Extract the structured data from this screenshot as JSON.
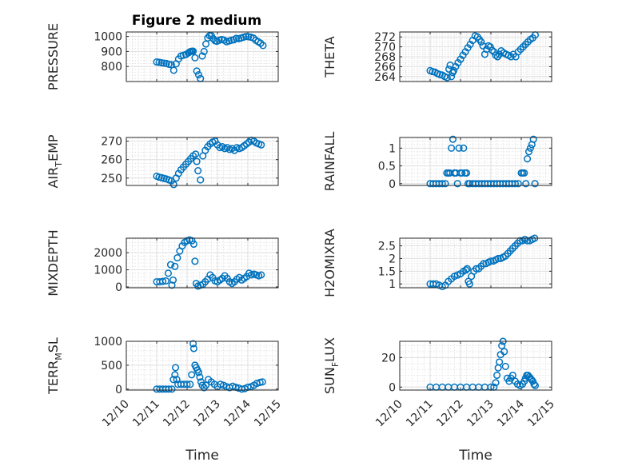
{
  "figure": {
    "title": "Figure 2 medium"
  },
  "chart_data": [
    {
      "type": "scatter",
      "title": "Figure 2 medium",
      "ylabel": "PRESSURE",
      "xlabel": "",
      "ylim": [
        700,
        1030
      ],
      "yticks": [
        800,
        900,
        1000
      ],
      "xlim": [
        10.0,
        15.0
      ],
      "grid": true,
      "x": [
        11.0,
        11.08,
        11.16,
        11.24,
        11.32,
        11.4,
        11.48,
        11.56,
        11.64,
        11.72,
        11.8,
        11.88,
        11.96,
        12.04,
        12.08,
        12.12,
        12.16,
        12.2,
        12.26,
        12.32,
        12.38,
        12.44,
        12.5,
        12.56,
        12.62,
        12.68,
        12.74,
        12.8,
        12.86,
        12.92,
        12.98,
        13.06,
        13.14,
        13.22,
        13.3,
        13.38,
        13.46,
        13.54,
        13.62,
        13.7,
        13.78,
        13.86,
        13.94,
        14.02,
        14.1,
        14.18,
        14.26,
        14.34,
        14.42,
        14.5
      ],
      "y": [
        830,
        828,
        825,
        822,
        820,
        815,
        812,
        775,
        818,
        850,
        870,
        875,
        880,
        890,
        896,
        900,
        902,
        902,
        858,
        770,
        745,
        720,
        870,
        900,
        950,
        990,
        1005,
        1005,
        985,
        972,
        968,
        975,
        980,
        975,
        965,
        970,
        975,
        978,
        988,
        985,
        990,
        995,
        1000,
        998,
        995,
        990,
        975,
        965,
        955,
        940
      ]
    },
    {
      "type": "scatter",
      "ylabel": "THETA",
      "xlabel": "",
      "ylim": [
        263,
        273
      ],
      "yticks": [
        264,
        266,
        268,
        270,
        272
      ],
      "xlim": [
        10.0,
        15.0
      ],
      "grid": true,
      "x": [
        11.0,
        11.08,
        11.16,
        11.24,
        11.32,
        11.4,
        11.48,
        11.56,
        11.62,
        11.66,
        11.7,
        11.74,
        11.78,
        11.84,
        11.92,
        12.0,
        12.08,
        12.16,
        12.24,
        12.32,
        12.4,
        12.48,
        12.56,
        12.62,
        12.68,
        12.74,
        12.8,
        12.86,
        12.92,
        12.98,
        13.04,
        13.1,
        13.16,
        13.22,
        13.28,
        13.34,
        13.42,
        13.5,
        13.58,
        13.66,
        13.74,
        13.82,
        13.9,
        13.98,
        14.06,
        14.14,
        14.22,
        14.3,
        14.38,
        14.46
      ],
      "y": [
        265.2,
        265.0,
        264.9,
        264.6,
        264.4,
        264.3,
        264.0,
        263.8,
        265.5,
        266.3,
        264.0,
        264.8,
        265.2,
        266.0,
        266.8,
        267.5,
        268.3,
        269.0,
        269.8,
        270.5,
        271.3,
        272.2,
        272.0,
        271.5,
        271.0,
        270.2,
        268.5,
        269.5,
        270.2,
        270.0,
        269.3,
        269.0,
        268.3,
        268.0,
        268.5,
        269.2,
        268.8,
        268.5,
        268.3,
        268.0,
        268.5,
        268.0,
        269.0,
        269.5,
        270.0,
        270.5,
        271.0,
        271.5,
        271.8,
        272.4
      ]
    },
    {
      "type": "scatter",
      "ylabel": "AIR_TEMP",
      "xlabel": "",
      "ylim": [
        246,
        272
      ],
      "yticks": [
        250,
        260,
        270
      ],
      "xlim": [
        10.0,
        15.0
      ],
      "grid": true,
      "x": [
        11.0,
        11.08,
        11.16,
        11.24,
        11.32,
        11.4,
        11.48,
        11.56,
        11.64,
        11.72,
        11.8,
        11.88,
        11.96,
        12.04,
        12.12,
        12.2,
        12.28,
        12.32,
        12.36,
        12.44,
        12.52,
        12.6,
        12.68,
        12.76,
        12.84,
        12.92,
        13.0,
        13.08,
        13.16,
        13.24,
        13.32,
        13.4,
        13.48,
        13.56,
        13.64,
        13.72,
        13.8,
        13.88,
        13.96,
        14.04,
        14.12,
        14.2,
        14.28,
        14.36,
        14.44
      ],
      "y": [
        251,
        250.5,
        250.2,
        249.8,
        249.5,
        249,
        248.5,
        246.5,
        250,
        252.5,
        254.5,
        256,
        257.5,
        259,
        260.5,
        262,
        263,
        259,
        254,
        249,
        262,
        265,
        267,
        268.5,
        269.5,
        270,
        268,
        266.5,
        267,
        266,
        266.5,
        265.5,
        266,
        265,
        266.5,
        266,
        266.5,
        267.5,
        268.5,
        269.5,
        270.5,
        270,
        269,
        268.5,
        268
      ]
    },
    {
      "type": "scatter",
      "ylabel": "RAINFALL",
      "xlabel": "",
      "ylim": [
        -0.05,
        1.3
      ],
      "yticks": [
        0,
        0.5,
        1
      ],
      "xlim": [
        10.0,
        15.0
      ],
      "grid": true,
      "x": [
        11.0,
        11.1,
        11.2,
        11.3,
        11.4,
        11.5,
        11.55,
        11.6,
        11.65,
        11.7,
        11.75,
        11.8,
        11.85,
        11.9,
        11.95,
        12.0,
        12.05,
        12.1,
        12.15,
        12.2,
        12.25,
        12.3,
        12.4,
        12.5,
        12.6,
        12.7,
        12.8,
        12.9,
        13.0,
        13.1,
        13.2,
        13.3,
        13.4,
        13.5,
        13.6,
        13.7,
        13.8,
        13.9,
        14.0,
        14.05,
        14.1,
        14.15,
        14.2,
        14.25,
        14.3,
        14.35,
        14.4,
        14.45
      ],
      "y": [
        0,
        0,
        0,
        0,
        0,
        0,
        0.3,
        0.3,
        0.3,
        1.0,
        1.25,
        0.3,
        0.3,
        0,
        1.0,
        0.3,
        0.3,
        1.0,
        0.3,
        0.3,
        0,
        0,
        0,
        0,
        0,
        0,
        0,
        0,
        0,
        0,
        0,
        0,
        0,
        0,
        0,
        0,
        0,
        0,
        0.3,
        0.3,
        0.3,
        0,
        0.7,
        0.9,
        1.0,
        1.1,
        1.25,
        0
      ]
    },
    {
      "type": "scatter",
      "ylabel": "MIXDEPTH",
      "xlabel": "",
      "ylim": [
        -50,
        2850
      ],
      "yticks": [
        0,
        1000,
        2000
      ],
      "xlim": [
        10.0,
        15.0
      ],
      "grid": true,
      "x": [
        11.0,
        11.1,
        11.2,
        11.3,
        11.38,
        11.46,
        11.5,
        11.54,
        11.6,
        11.68,
        11.76,
        11.84,
        11.92,
        12.0,
        12.08,
        12.16,
        12.22,
        12.26,
        12.3,
        12.36,
        12.44,
        12.52,
        12.6,
        12.68,
        12.76,
        12.84,
        12.92,
        13.0,
        13.08,
        13.16,
        13.24,
        13.32,
        13.4,
        13.48,
        13.56,
        13.64,
        13.72,
        13.8,
        13.88,
        13.96,
        14.04,
        14.12,
        14.2,
        14.28,
        14.36,
        14.44
      ],
      "y": [
        300,
        300,
        320,
        350,
        800,
        1300,
        100,
        400,
        1200,
        1700,
        2100,
        2400,
        2600,
        2700,
        2750,
        2700,
        2500,
        1500,
        200,
        50,
        100,
        150,
        300,
        450,
        700,
        550,
        350,
        300,
        400,
        500,
        650,
        500,
        300,
        200,
        300,
        450,
        550,
        400,
        500,
        600,
        800,
        700,
        750,
        700,
        650,
        700
      ]
    },
    {
      "type": "scatter",
      "ylabel": "H2OMIXRA",
      "xlabel": "",
      "ylim": [
        0.85,
        2.8
      ],
      "yticks": [
        1,
        1.5,
        2,
        2.5
      ],
      "xlim": [
        10.0,
        15.0
      ],
      "grid": true,
      "x": [
        11.0,
        11.1,
        11.2,
        11.3,
        11.4,
        11.5,
        11.6,
        11.7,
        11.8,
        11.9,
        12.0,
        12.1,
        12.18,
        12.22,
        12.26,
        12.3,
        12.36,
        12.44,
        12.52,
        12.6,
        12.68,
        12.76,
        12.84,
        12.92,
        13.0,
        13.08,
        13.16,
        13.24,
        13.32,
        13.4,
        13.48,
        13.56,
        13.64,
        13.72,
        13.8,
        13.88,
        13.96,
        14.04,
        14.12,
        14.2,
        14.28,
        14.36,
        14.44
      ],
      "y": [
        1.0,
        1.0,
        1.0,
        0.95,
        0.9,
        0.95,
        1.1,
        1.2,
        1.3,
        1.35,
        1.4,
        1.5,
        1.55,
        1.6,
        1.1,
        1.0,
        1.3,
        1.5,
        1.6,
        1.6,
        1.7,
        1.8,
        1.8,
        1.85,
        1.9,
        1.9,
        1.95,
        2.0,
        2.0,
        2.05,
        2.1,
        2.2,
        2.3,
        2.4,
        2.5,
        2.6,
        2.7,
        2.7,
        2.75,
        2.7,
        2.7,
        2.75,
        2.8
      ]
    },
    {
      "type": "scatter",
      "ylabel": "TERR_MSL",
      "xlabel": "Time",
      "ylim": [
        -20,
        1000
      ],
      "yticks": [
        0,
        500,
        1000
      ],
      "xlim": [
        10.0,
        15.0
      ],
      "xticks": [
        "12/10",
        "12/11",
        "12/12",
        "12/13",
        "12/14",
        "12/15"
      ],
      "grid": true,
      "x": [
        11.0,
        11.1,
        11.2,
        11.3,
        11.4,
        11.5,
        11.55,
        11.6,
        11.62,
        11.66,
        11.7,
        11.8,
        11.9,
        12.0,
        12.1,
        12.15,
        12.2,
        12.22,
        12.26,
        12.3,
        12.34,
        12.38,
        12.42,
        12.46,
        12.5,
        12.56,
        12.62,
        12.7,
        12.8,
        12.9,
        13.0,
        13.1,
        13.2,
        13.3,
        13.4,
        13.5,
        13.6,
        13.7,
        13.8,
        13.9,
        14.0,
        14.1,
        14.2,
        14.3,
        14.4,
        14.48
      ],
      "y": [
        0,
        0,
        0,
        0,
        0,
        0,
        200,
        300,
        450,
        200,
        100,
        100,
        100,
        100,
        100,
        300,
        950,
        850,
        500,
        450,
        400,
        350,
        250,
        150,
        80,
        30,
        80,
        200,
        150,
        100,
        50,
        100,
        80,
        50,
        30,
        60,
        40,
        20,
        0,
        10,
        40,
        50,
        80,
        120,
        140,
        150
      ]
    },
    {
      "type": "scatter",
      "ylabel": "SUN_FLUX",
      "xlabel": "Time",
      "ylim": [
        -2,
        31
      ],
      "yticks": [
        0,
        20
      ],
      "xlim": [
        10.0,
        15.0
      ],
      "xticks": [
        "12/10",
        "12/11",
        "12/12",
        "12/13",
        "12/14",
        "12/15"
      ],
      "grid": true,
      "x": [
        11.0,
        11.2,
        11.4,
        11.6,
        11.8,
        12.0,
        12.2,
        12.4,
        12.6,
        12.8,
        13.0,
        13.1,
        13.16,
        13.2,
        13.24,
        13.28,
        13.32,
        13.36,
        13.4,
        13.44,
        13.48,
        13.54,
        13.6,
        13.66,
        13.72,
        13.8,
        13.88,
        13.96,
        14.04,
        14.1,
        14.14,
        14.18,
        14.22,
        14.26,
        14.3,
        14.34,
        14.38,
        14.42,
        14.46
      ],
      "y": [
        0,
        0,
        0,
        0,
        0,
        0,
        0,
        0,
        0,
        0,
        0,
        0,
        3,
        8,
        13,
        17,
        22,
        28,
        31,
        24,
        14,
        6,
        4,
        6,
        8,
        4,
        2,
        1,
        2,
        4,
        6,
        8,
        8,
        7,
        6,
        5,
        4,
        2,
        1
      ]
    }
  ]
}
